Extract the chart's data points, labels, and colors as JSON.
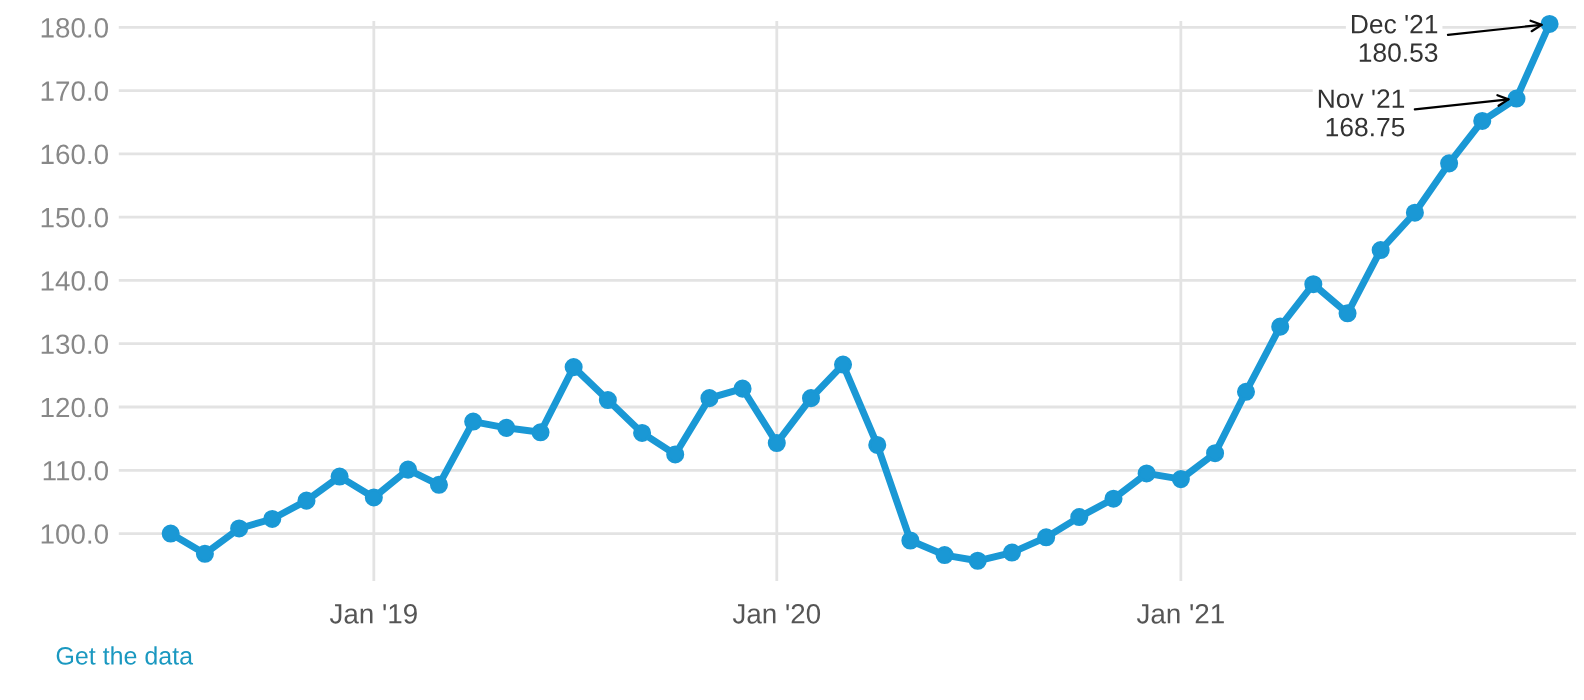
{
  "chart_data": {
    "type": "line",
    "x": [
      "2018-07",
      "2018-08",
      "2018-09",
      "2018-10",
      "2018-11",
      "2018-12",
      "2019-01",
      "2019-02",
      "2019-03",
      "2019-04",
      "2019-05",
      "2019-06",
      "2019-07",
      "2019-08",
      "2019-09",
      "2019-10",
      "2019-11",
      "2019-12",
      "2020-01",
      "2020-02",
      "2020-03",
      "2020-04",
      "2020-05",
      "2020-06",
      "2020-07",
      "2020-08",
      "2020-09",
      "2020-10",
      "2020-11",
      "2020-12",
      "2021-01",
      "2021-02",
      "2021-03",
      "2021-04",
      "2021-05",
      "2021-06",
      "2021-07",
      "2021-08",
      "2021-09",
      "2021-10",
      "2021-11",
      "2021-12"
    ],
    "series": [
      {
        "color": "#1a98d5",
        "values": [
          100.0,
          96.8,
          100.8,
          102.3,
          105.2,
          109.0,
          105.7,
          110.1,
          107.7,
          117.7,
          116.7,
          116.0,
          126.3,
          121.1,
          115.9,
          112.5,
          121.4,
          122.9,
          114.3,
          121.4,
          126.7,
          114.0,
          98.9,
          96.6,
          95.7,
          97.0,
          99.4,
          102.6,
          105.5,
          109.5,
          108.6,
          112.7,
          122.4,
          132.7,
          139.4,
          134.8,
          144.8,
          150.7,
          158.5,
          165.2,
          168.75,
          180.53
        ]
      }
    ],
    "xlim": [
      "2018-05-15",
      "2021-12-25"
    ],
    "xticks": [
      {
        "value": "2019-01",
        "label": "Jan '19"
      },
      {
        "value": "2020-01",
        "label": "Jan '20"
      },
      {
        "value": "2021-01",
        "label": "Jan '21"
      }
    ],
    "ylim": [
      92.5,
      181
    ],
    "yticks": [
      {
        "value": 100,
        "label": "100.0"
      },
      {
        "value": 110,
        "label": "110.0"
      },
      {
        "value": 120,
        "label": "120.0"
      },
      {
        "value": 130,
        "label": "130.0"
      },
      {
        "value": 140,
        "label": "140.0"
      },
      {
        "value": 150,
        "label": "150.0"
      },
      {
        "value": 160,
        "label": "160.0"
      },
      {
        "value": 170,
        "label": "170.0"
      },
      {
        "value": 180,
        "label": "180.0"
      }
    ],
    "grid": true,
    "marker": "circle",
    "line_style": "solid",
    "annotations": [
      {
        "text": "Dec '21\n180.53",
        "x": "2021-12",
        "y": 180.53
      },
      {
        "text": "Nov '21\n168.75",
        "x": "2021-11",
        "y": 168.75
      },
      "Get the data"
    ]
  }
}
